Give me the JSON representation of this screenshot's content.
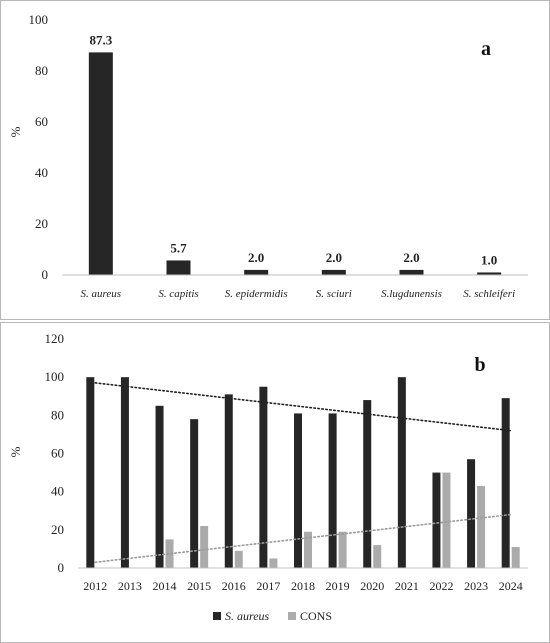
{
  "chart_data": [
    {
      "type": "bar",
      "panel_label": "a",
      "ylabel": "%",
      "ylim": [
        0,
        100
      ],
      "yticks": [
        0,
        20,
        40,
        60,
        80,
        100
      ],
      "grid": false,
      "color": "#262626",
      "categories": [
        "S. aureus",
        "S. capitis",
        "S. epidermidis",
        "S. sciuri",
        "S.lugdunensis",
        "S. schleiferi"
      ],
      "values": [
        87.3,
        5.7,
        2.0,
        2.0,
        2.0,
        1.0
      ],
      "data_labels": [
        "87.3",
        "5.7",
        "2.0",
        "2.0",
        "2.0",
        "1.0"
      ]
    },
    {
      "type": "bar",
      "panel_label": "b",
      "ylabel": "%",
      "ylim": [
        0,
        120
      ],
      "yticks": [
        0,
        20,
        40,
        60,
        80,
        100,
        120
      ],
      "grid": false,
      "legend_position": "bottom",
      "categories": [
        "2012",
        "2013",
        "2014",
        "2015",
        "2016",
        "2017",
        "2018",
        "2019",
        "2020",
        "2021",
        "2022",
        "2023",
        "2024"
      ],
      "series": [
        {
          "name": "S. aureus",
          "color": "#262626",
          "values": [
            100,
            100,
            85,
            78,
            91,
            95,
            81,
            81,
            88,
            100,
            50,
            57,
            89
          ],
          "trendline": {
            "style": "dotted",
            "start": 97,
            "end": 72
          }
        },
        {
          "name": "CONS",
          "color": "#ababab",
          "values": [
            0,
            0,
            15,
            22,
            9,
            5,
            19,
            19,
            12,
            0,
            50,
            43,
            11
          ],
          "trendline": {
            "style": "dotted",
            "start": 3,
            "end": 28
          }
        }
      ]
    }
  ]
}
